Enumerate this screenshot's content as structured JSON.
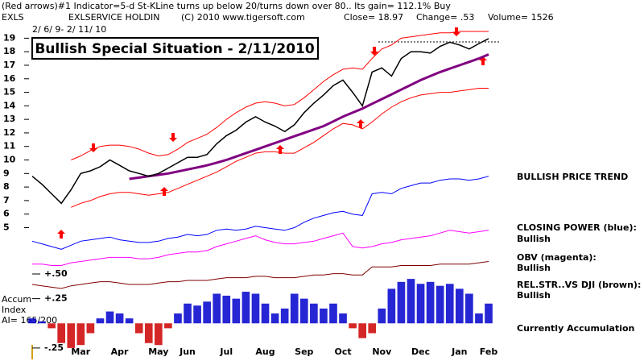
{
  "header": {
    "line1": "(Red arrows)#1 Indicator=5-d St-KLine turns up below 20/turns down over 80.. Its gain= 112.1% Buy",
    "symbol": "EXLS",
    "company": "EXLSERVICE HOLDIN",
    "copyright": "(C) 2010 www.tigersoft.com",
    "close": "Close= 18.97",
    "change": "Change= .53",
    "volume": "Volume= 1526",
    "dates": "2/ 6/ 9- 2/ 11/ 10",
    "title": "Bullish Special Situation - 2/11/2010"
  },
  "side_labels": [
    "BULLISH PRICE TREND",
    "CLOSING POWER (blue):",
    "Bullish",
    "OBV (magenta):",
    "Bullish",
    "REL.STR..VS DJI (brown):",
    "Bullish",
    "Currently Accumulation"
  ],
  "accum_labels": [
    "Accum",
    "Index",
    "AI= 165/200"
  ],
  "chart_data": [
    {
      "type": "line",
      "categories": [
        null,
        null,
        null,
        null,
        null,
        "Mar",
        null,
        null,
        null,
        "Apr",
        null,
        null,
        null,
        "May",
        null,
        null,
        "Jun",
        null,
        null,
        null,
        "Jul",
        null,
        null,
        null,
        "Aug",
        null,
        null,
        null,
        "Sep",
        null,
        null,
        null,
        "Oct",
        null,
        null,
        null,
        "Nov",
        null,
        null,
        null,
        "Dec",
        null,
        null,
        null,
        "Jan",
        null,
        null,
        "Feb"
      ],
      "ylim": [
        -4.5,
        19.5
      ],
      "yticks": [
        5,
        6,
        7,
        8,
        9,
        10,
        11,
        12,
        13,
        14,
        15,
        16,
        17,
        18,
        19
      ],
      "series": [
        {
          "color": "#ff0000",
          "values": [
            null,
            null,
            null,
            null,
            10.0,
            10.3,
            10.7,
            11.0,
            11.1,
            11.1,
            11.0,
            10.8,
            10.5,
            10.3,
            10.4,
            10.8,
            11.3,
            11.6,
            11.9,
            12.4,
            13.0,
            13.5,
            13.9,
            14.2,
            14.3,
            14.2,
            14.0,
            14.1,
            14.6,
            15.2,
            15.8,
            16.3,
            16.7,
            16.8,
            16.7,
            17.5,
            18.2,
            18.5,
            19.0,
            19.1,
            19.2,
            19.3,
            19.4,
            19.4,
            19.5,
            19.5,
            19.5,
            19.5
          ]
        },
        {
          "color": "#ff0000",
          "values": [
            null,
            null,
            null,
            null,
            6.5,
            6.8,
            7.0,
            7.3,
            7.5,
            7.6,
            7.6,
            7.5,
            7.4,
            7.5,
            7.6,
            7.9,
            8.2,
            8.5,
            8.8,
            9.1,
            9.5,
            9.9,
            10.2,
            10.5,
            10.6,
            10.6,
            10.5,
            10.5,
            10.9,
            11.3,
            11.8,
            12.3,
            12.7,
            12.6,
            12.3,
            12.8,
            13.4,
            13.9,
            14.3,
            14.6,
            14.8,
            14.9,
            15.0,
            15.0,
            15.1,
            15.2,
            15.3,
            15.3
          ]
        },
        {
          "color": "#800080",
          "values": [
            null,
            null,
            null,
            null,
            null,
            null,
            null,
            null,
            null,
            null,
            8.6,
            8.7,
            8.8,
            8.9,
            9.0,
            9.15,
            9.3,
            9.45,
            9.6,
            9.8,
            10.0,
            10.25,
            10.5,
            10.75,
            11.0,
            11.25,
            11.5,
            11.75,
            12.0,
            12.25,
            12.5,
            12.85,
            13.2,
            13.5,
            13.8,
            14.15,
            14.5,
            14.85,
            15.2,
            15.55,
            15.9,
            16.2,
            16.5,
            16.75,
            17.0,
            17.25,
            17.5,
            17.8
          ]
        },
        {
          "color": "#000000",
          "values": [
            8.8,
            8.2,
            7.5,
            6.8,
            7.8,
            9,
            9.2,
            9.5,
            10,
            9.6,
            9.2,
            9,
            8.8,
            9,
            9.4,
            9.8,
            10.2,
            10.2,
            10.4,
            11.2,
            11.8,
            12.2,
            12.8,
            13.2,
            12.8,
            12.5,
            12.1,
            12.6,
            13.5,
            14.2,
            14.8,
            15.5,
            15.9,
            15,
            14,
            16.5,
            16.8,
            16.2,
            17.5,
            18,
            18,
            17.9,
            18.4,
            18.7,
            18.5,
            18.2,
            18.6,
            18.97
          ]
        },
        {
          "color": "#0000ff",
          "values": [
            4.0,
            3.8,
            3.6,
            3.4,
            3.7,
            4.0,
            4.1,
            4.2,
            4.3,
            4.1,
            4.0,
            3.9,
            3.9,
            4.0,
            4.2,
            4.3,
            4.5,
            4.4,
            4.5,
            4.8,
            4.9,
            4.8,
            4.9,
            5.1,
            5.0,
            4.9,
            4.8,
            5.0,
            5.4,
            5.7,
            5.9,
            6.1,
            6.2,
            6.0,
            5.9,
            7.5,
            7.6,
            7.5,
            7.9,
            8.1,
            8.3,
            8.3,
            8.5,
            8.6,
            8.6,
            8.5,
            8.6,
            8.8
          ]
        },
        {
          "color": "#ff00ff",
          "values": [
            2.3,
            2.3,
            2.2,
            2.2,
            2.4,
            2.5,
            2.6,
            2.7,
            2.8,
            2.8,
            2.8,
            2.7,
            2.7,
            2.8,
            3.0,
            3.1,
            3.2,
            3.2,
            3.3,
            3.6,
            3.8,
            4.0,
            4.2,
            4.4,
            4.1,
            3.9,
            3.8,
            3.8,
            3.9,
            4.0,
            4.2,
            4.4,
            4.6,
            3.6,
            3.5,
            3.6,
            3.8,
            3.9,
            4.1,
            4.2,
            4.3,
            4.4,
            4.6,
            4.8,
            4.7,
            4.6,
            4.7,
            4.8
          ]
        },
        {
          "color": "#800000",
          "values": [
            0.8,
            0.7,
            0.6,
            0.5,
            0.7,
            0.8,
            0.9,
            1.0,
            1.0,
            0.9,
            0.8,
            0.8,
            0.8,
            0.9,
            1.0,
            1.0,
            1.1,
            1.1,
            1.1,
            1.2,
            1.3,
            1.3,
            1.3,
            1.4,
            1.4,
            1.3,
            1.3,
            1.3,
            1.4,
            1.5,
            1.5,
            1.6,
            1.6,
            1.5,
            1.5,
            2.1,
            2.1,
            2.1,
            2.2,
            2.2,
            2.2,
            2.2,
            2.3,
            2.3,
            2.3,
            2.3,
            2.4,
            2.5
          ]
        }
      ]
    },
    {
      "type": "bar",
      "ylim": [
        -0.3,
        0.5
      ],
      "yticks": [
        {
          "value": 0.5,
          "label": "+.50"
        },
        {
          "value": 0.25,
          "label": "+.25"
        },
        {
          "value": -0.25,
          "label": "-.25"
        }
      ],
      "color": "#0000cc",
      "negative_color": "#cc0000",
      "values": [
        0.05,
        0.02,
        -0.05,
        -0.2,
        -0.25,
        -0.22,
        -0.1,
        0.05,
        0.12,
        0.1,
        0.05,
        -0.1,
        -0.2,
        -0.22,
        -0.05,
        0.1,
        0.2,
        0.18,
        0.22,
        0.3,
        0.28,
        0.25,
        0.32,
        0.3,
        0.2,
        0.1,
        0.15,
        0.3,
        0.25,
        0.2,
        0.15,
        0.2,
        0.1,
        -0.05,
        -0.15,
        -0.1,
        0.15,
        0.35,
        0.42,
        0.45,
        0.4,
        0.42,
        0.38,
        0.4,
        0.35,
        0.3,
        0.1,
        0.2
      ]
    }
  ]
}
